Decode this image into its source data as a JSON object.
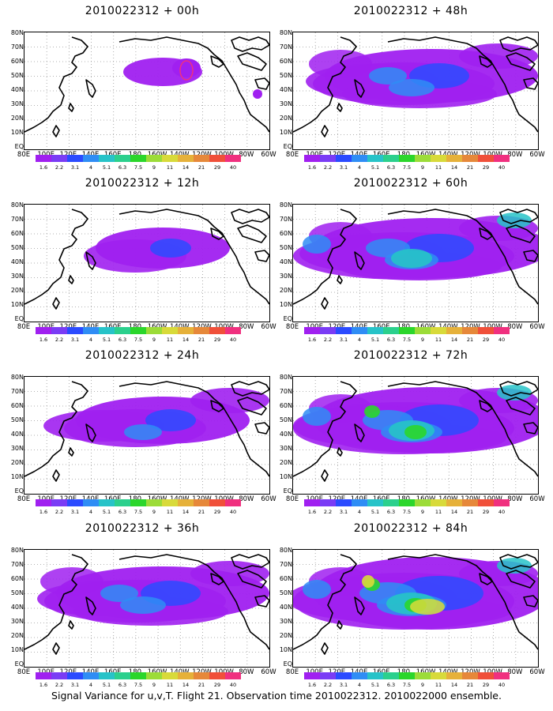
{
  "caption": "Signal Variance for u,v,T. Flight 21. Observation time 2010022312. 2010022000 ensemble.",
  "lat_labels": [
    "80N",
    "70N",
    "60N",
    "50N",
    "40N",
    "30N",
    "20N",
    "10N",
    "EQ"
  ],
  "lon_labels": [
    "80E",
    "100E",
    "120E",
    "140E",
    "160E",
    "180",
    "160W",
    "140W",
    "120W",
    "100W",
    "80W",
    "60W"
  ],
  "colorbar": {
    "labels": [
      "1.6",
      "2.2",
      "3.1",
      "4",
      "5.1",
      "6.3",
      "7.5",
      "9",
      "11",
      "14",
      "21",
      "29",
      "40"
    ],
    "colors": [
      "#a020f0",
      "#7a3cf5",
      "#2b4bff",
      "#2f8df5",
      "#27c3c8",
      "#2bd08d",
      "#2bd62b",
      "#9cdc38",
      "#d8da3a",
      "#e6b13a",
      "#e6883a",
      "#f0503a",
      "#f0307f"
    ]
  },
  "panels": [
    {
      "id": "p00",
      "title": "2010022312 + 00h",
      "intensity": 0
    },
    {
      "id": "p12",
      "title": "2010022312 + 12h",
      "intensity": 1
    },
    {
      "id": "p24",
      "title": "2010022312 + 24h",
      "intensity": 2
    },
    {
      "id": "p36",
      "title": "2010022312 + 36h",
      "intensity": 3
    },
    {
      "id": "p48",
      "title": "2010022312 + 48h",
      "intensity": 3
    },
    {
      "id": "p60",
      "title": "2010022312 + 60h",
      "intensity": 4
    },
    {
      "id": "p72",
      "title": "2010022312 + 72h",
      "intensity": 5
    },
    {
      "id": "p84",
      "title": "2010022312 + 84h",
      "intensity": 6
    }
  ]
}
